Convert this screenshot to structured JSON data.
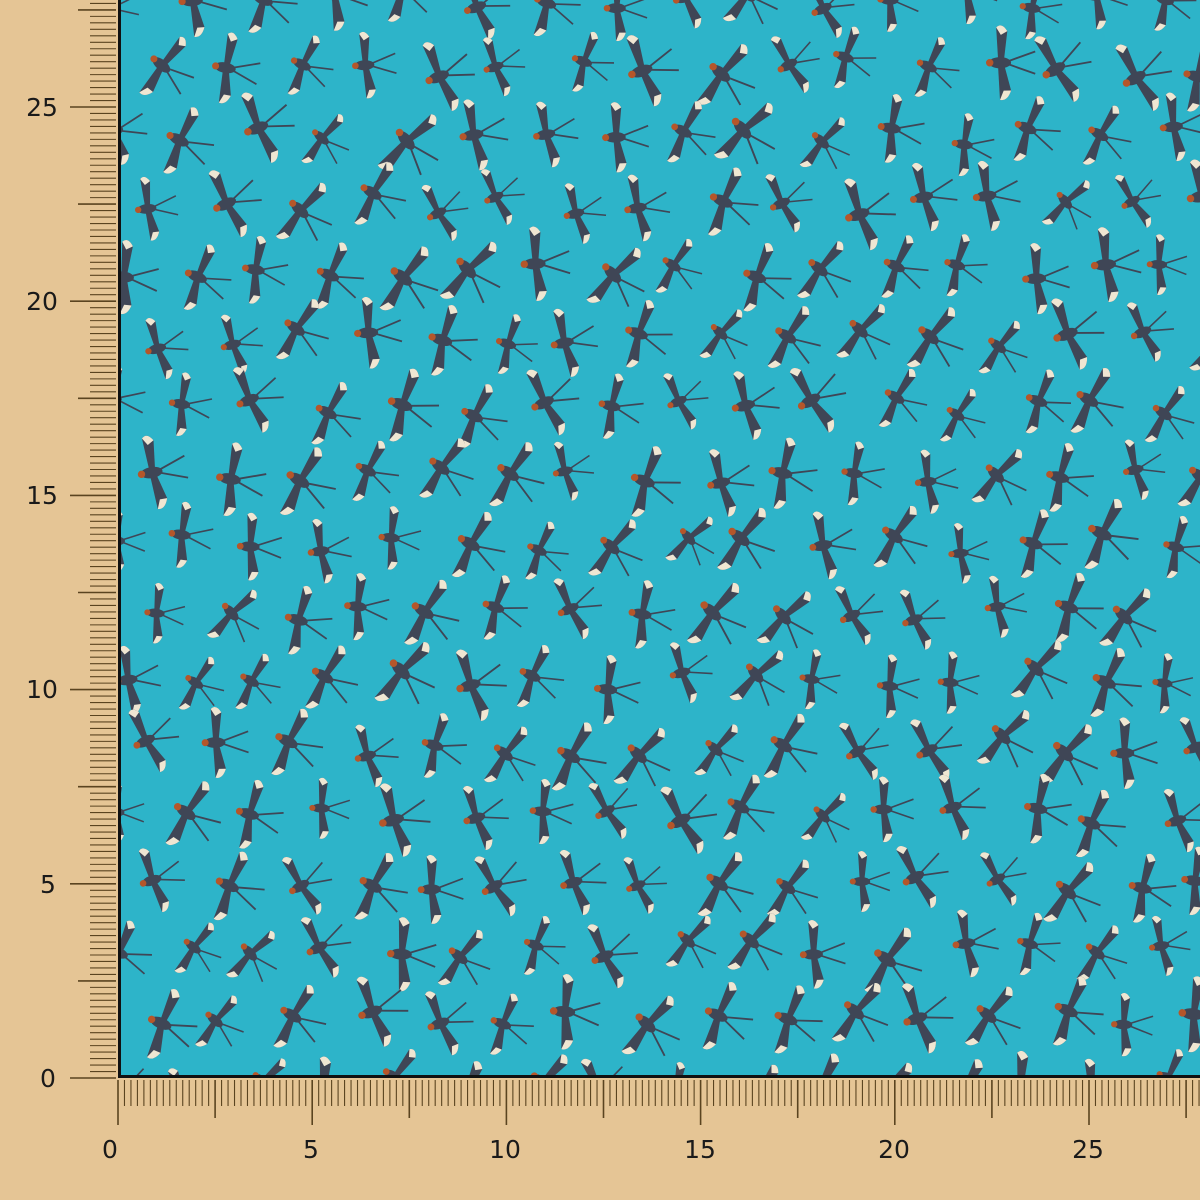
{
  "colors": {
    "background": "#e5c595",
    "fabric": "#2db4c9",
    "bird_body": "#3f4656",
    "bird_wing_tip": "#efe6d2",
    "bird_head": "#b5562a",
    "tick": "#5a4420"
  },
  "fabric": {
    "pattern": "flying swallows"
  },
  "x_ruler": {
    "labels": [
      "0",
      "5",
      "10",
      "15",
      "20",
      "25"
    ]
  },
  "y_ruler": {
    "labels": [
      "0",
      "5",
      "10",
      "15",
      "20",
      "25"
    ]
  }
}
